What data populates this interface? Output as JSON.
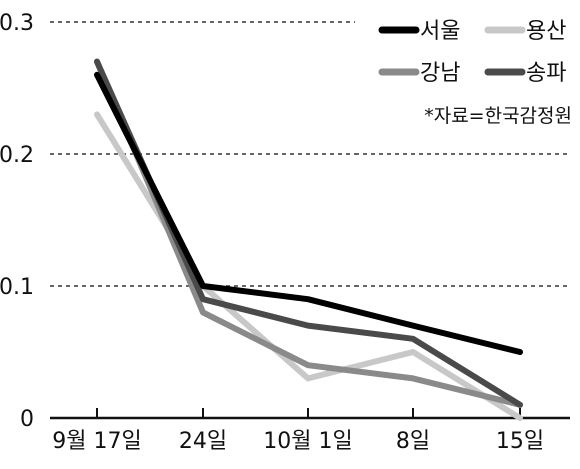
{
  "chart_data": {
    "type": "line",
    "categories": [
      "9월 17일",
      "24일",
      "10월 1일",
      "8일",
      "15일"
    ],
    "ylim": [
      0,
      0.3
    ],
    "yticks": [
      0,
      0.1,
      0.2,
      0.3
    ],
    "ytick_labels": [
      "0",
      "0.1",
      "0.2",
      "0.3"
    ],
    "grid": true,
    "legend_position": "top-right",
    "note": "*자료=한국감정원",
    "series": [
      {
        "name": "서울",
        "color": "#000000",
        "values": [
          0.26,
          0.1,
          0.09,
          0.07,
          0.05
        ]
      },
      {
        "name": "용산",
        "color": "#c8c8c8",
        "values": [
          0.23,
          0.1,
          0.03,
          0.05,
          0.0
        ]
      },
      {
        "name": "강남",
        "color": "#8a8a8a",
        "values": [
          0.27,
          0.08,
          0.04,
          0.03,
          0.01
        ]
      },
      {
        "name": "송파",
        "color": "#4a4a4a",
        "values": [
          0.27,
          0.09,
          0.07,
          0.06,
          0.01
        ]
      }
    ]
  }
}
